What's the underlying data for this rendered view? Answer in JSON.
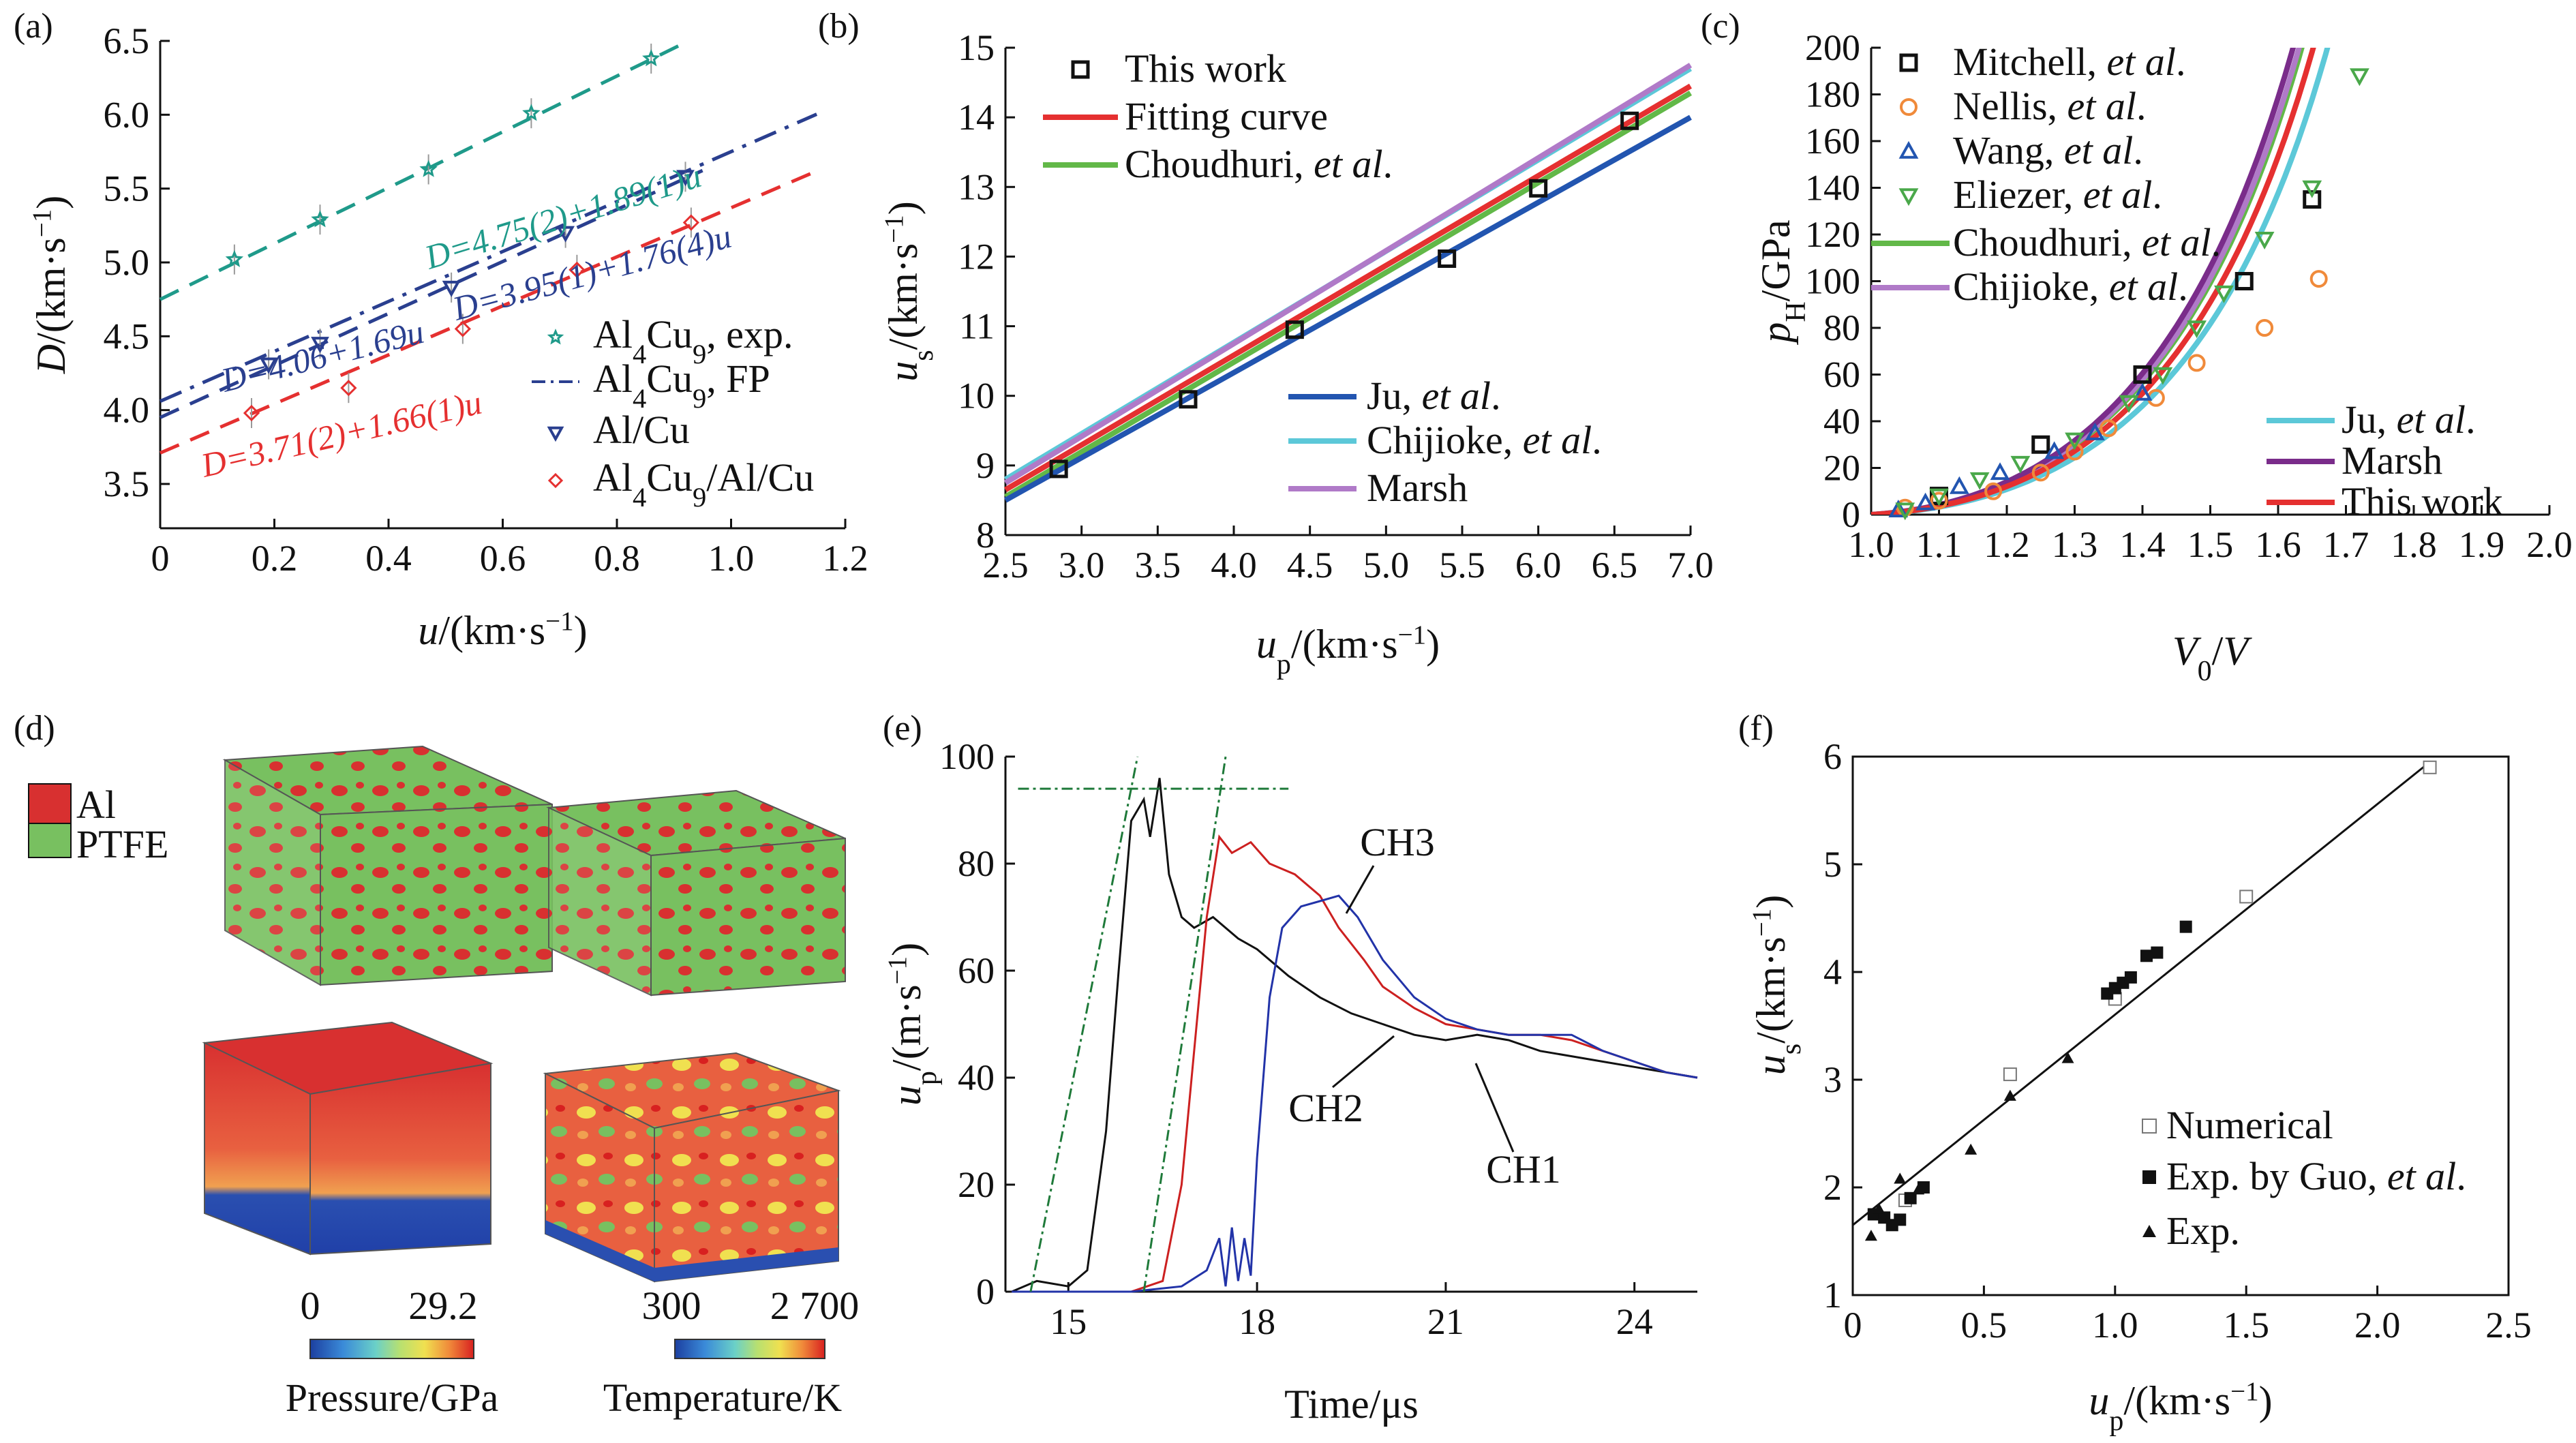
{
  "colors": {
    "teal": "#1f9a8a",
    "navy": "#2a3f8f",
    "red": "#e53030",
    "black": "#111111",
    "green": "#62b848",
    "lightblue": "#5cc8d8",
    "purple": "#b07ac8",
    "darkblue": "#2255b0",
    "orange": "#f08a3a",
    "darkpurple": "#7a2c8a",
    "al": "#d83030",
    "ptfe": "#78c060",
    "cyan": "#3ab8d8"
  },
  "chart_data": [
    {
      "id": "a",
      "type": "scatter",
      "panel_label": "(a)",
      "xlabel": "u/(km·s⁻¹)",
      "ylabel": "D/(km·s⁻¹)",
      "xlim": [
        0,
        1.2
      ],
      "ylim": [
        3.2,
        6.5
      ],
      "xticks": [
        0,
        0.2,
        0.4,
        0.6,
        0.8,
        1.0,
        1.2
      ],
      "yticks": [
        3.5,
        4.0,
        4.5,
        5.0,
        5.5,
        6.0,
        6.5
      ],
      "series": [
        {
          "name": "Al4Cu9, exp.",
          "marker": "star",
          "color": "#1f9a8a",
          "points": [
            [
              0.13,
              5.02
            ],
            [
              0.28,
              5.29
            ],
            [
              0.47,
              5.63
            ],
            [
              0.65,
              6.01
            ],
            [
              0.86,
              6.38
            ]
          ],
          "fit": {
            "x": [
              0,
              0.92
            ],
            "a": 4.75,
            "b": 1.89
          }
        },
        {
          "name": "Al4Cu9, FP",
          "marker": "none",
          "color": "#2a3f8f",
          "dash": "dashdot",
          "fit": {
            "x": [
              0,
              1.15
            ],
            "a": 4.06,
            "b": 1.69
          }
        },
        {
          "name": "Al/Cu",
          "marker": "tri-down",
          "color": "#2a3f8f",
          "points": [
            [
              0.19,
              4.31
            ],
            [
              0.28,
              4.45
            ],
            [
              0.51,
              4.83
            ],
            [
              0.71,
              5.2
            ],
            [
              0.92,
              5.58
            ]
          ],
          "fit": {
            "x": [
              0,
              0.95
            ],
            "a": 3.95,
            "b": 1.76
          }
        },
        {
          "name": "Al4Cu9/Al/Cu",
          "marker": "diamond",
          "color": "#e53030",
          "points": [
            [
              0.16,
              3.98
            ],
            [
              0.33,
              4.15
            ],
            [
              0.53,
              4.55
            ],
            [
              0.73,
              4.95
            ],
            [
              0.93,
              5.27
            ]
          ],
          "fit": {
            "x": [
              0,
              1.15
            ],
            "a": 3.71,
            "b": 1.66
          }
        }
      ],
      "annotations": [
        "D=4.75(2)+1.89(1)u",
        "D=4.06+1.69u",
        "D=3.95(1)+1.76(4)u",
        "D=3.71(2)+1.66(1)u"
      ],
      "legend": [
        "Al4Cu9, exp.",
        "Al4Cu9, FP",
        "Al/Cu",
        "Al4Cu9/Al/Cu"
      ]
    },
    {
      "id": "b",
      "type": "line",
      "panel_label": "(b)",
      "xlabel": "up/(km·s⁻¹)",
      "ylabel": "us/(km·s⁻¹)",
      "xlim": [
        2.5,
        7.0
      ],
      "ylim": [
        8,
        15
      ],
      "xticks": [
        2.5,
        3.0,
        3.5,
        4.0,
        4.5,
        5.0,
        5.5,
        6.0,
        6.5,
        7.0
      ],
      "yticks": [
        8,
        9,
        10,
        11,
        12,
        13,
        14,
        15
      ],
      "points": [
        [
          2.85,
          8.95
        ],
        [
          3.7,
          9.95
        ],
        [
          4.4,
          10.95
        ],
        [
          5.4,
          11.97
        ],
        [
          6.0,
          12.98
        ],
        [
          6.6,
          13.95
        ]
      ],
      "series": [
        {
          "name": "Fitting curve",
          "color": "#e53030",
          "line": [
            [
              2.5,
              8.65
            ],
            [
              7.0,
              14.45
            ]
          ]
        },
        {
          "name": "Choudhuri, et al.",
          "color": "#62b848",
          "line": [
            [
              2.5,
              8.55
            ],
            [
              7.0,
              14.35
            ]
          ]
        },
        {
          "name": "Ju, et al.",
          "color": "#2255b0",
          "line": [
            [
              2.5,
              8.5
            ],
            [
              7.0,
              14.0
            ]
          ]
        },
        {
          "name": "Chijioke, et al.",
          "color": "#5cc8d8",
          "line": [
            [
              2.5,
              8.8
            ],
            [
              7.0,
              14.7
            ]
          ]
        },
        {
          "name": "Marsh",
          "color": "#b07ac8",
          "line": [
            [
              2.5,
              8.75
            ],
            [
              7.0,
              14.75
            ]
          ]
        }
      ],
      "legend_top": [
        "This work",
        "Fitting curve",
        "Choudhuri, et al."
      ],
      "legend_bottom": [
        "Ju, et al.",
        "Chijioke, et al.",
        "Marsh"
      ]
    },
    {
      "id": "c",
      "type": "scatter",
      "panel_label": "(c)",
      "xlabel": "V0/V",
      "ylabel": "pH/GPa",
      "xlim": [
        1.0,
        2.0
      ],
      "ylim": [
        0,
        200
      ],
      "xticks": [
        1.0,
        1.1,
        1.2,
        1.3,
        1.4,
        1.5,
        1.6,
        1.7,
        1.8,
        1.9,
        2.0
      ],
      "yticks": [
        0,
        20,
        40,
        60,
        80,
        100,
        120,
        140,
        160,
        180,
        200
      ],
      "markers": [
        {
          "name": "Mitchell, et al.",
          "marker": "square",
          "color": "#111111",
          "points": [
            [
              1.1,
              8
            ],
            [
              1.25,
              30
            ],
            [
              1.4,
              60
            ],
            [
              1.55,
              100
            ],
            [
              1.65,
              135
            ]
          ]
        },
        {
          "name": "Nellis, et al.",
          "marker": "circle",
          "color": "#f08a3a",
          "points": [
            [
              1.05,
              3
            ],
            [
              1.1,
              6
            ],
            [
              1.18,
              10
            ],
            [
              1.25,
              18
            ],
            [
              1.3,
              27
            ],
            [
              1.35,
              37
            ],
            [
              1.42,
              50
            ],
            [
              1.48,
              65
            ],
            [
              1.58,
              80
            ],
            [
              1.66,
              101
            ]
          ]
        },
        {
          "name": "Wang, et al.",
          "marker": "tri-up",
          "color": "#2255b0",
          "points": [
            [
              1.04,
              2
            ],
            [
              1.08,
              5
            ],
            [
              1.13,
              12
            ],
            [
              1.19,
              18
            ],
            [
              1.27,
              27
            ],
            [
              1.33,
              35
            ],
            [
              1.4,
              52
            ]
          ]
        },
        {
          "name": "Eliezer, et al.",
          "marker": "tri-down",
          "color": "#4aa84a",
          "points": [
            [
              1.05,
              2
            ],
            [
              1.1,
              8
            ],
            [
              1.16,
              15
            ],
            [
              1.22,
              22
            ],
            [
              1.3,
              32
            ],
            [
              1.38,
              48
            ],
            [
              1.43,
              60
            ],
            [
              1.48,
              80
            ],
            [
              1.52,
              95
            ],
            [
              1.58,
              118
            ],
            [
              1.65,
              140
            ],
            [
              1.72,
              188
            ]
          ]
        }
      ],
      "curves": [
        {
          "name": "Choudhuri, et al.",
          "color": "#62b848",
          "k": 192
        },
        {
          "name": "Chijioke, et al.",
          "color": "#b07ac8",
          "k": 196
        },
        {
          "name": "Ju, et al.",
          "color": "#5cc8d8",
          "k": 158
        },
        {
          "name": "Marsh",
          "color": "#7a2c8a",
          "k": 205
        },
        {
          "name": "This work",
          "color": "#e53030",
          "k": 176
        }
      ],
      "legend_top": [
        "Mitchell, et al.",
        "Nellis, et al.",
        "Wang, et al.",
        "Eliezer, et al.",
        "Choudhuri, et al.",
        "Chijioke, et al."
      ],
      "legend_bottom": [
        "Ju, et al.",
        "Marsh",
        "This work"
      ]
    },
    {
      "id": "e",
      "type": "line",
      "panel_label": "(e)",
      "xlabel": "Time/μs",
      "ylabel": "up/(m·s⁻¹)",
      "xlim": [
        14,
        25
      ],
      "ylim": [
        0,
        100
      ],
      "xticks": [
        15,
        18,
        21,
        24
      ],
      "yticks": [
        0,
        20,
        40,
        60,
        80,
        100
      ],
      "series": [
        {
          "name": "CH1",
          "color": "#111111",
          "points": [
            [
              14.1,
              0
            ],
            [
              14.5,
              2
            ],
            [
              15.0,
              1
            ],
            [
              15.3,
              4
            ],
            [
              15.6,
              30
            ],
            [
              15.8,
              60
            ],
            [
              16.0,
              88
            ],
            [
              16.2,
              92
            ],
            [
              16.3,
              85
            ],
            [
              16.45,
              96
            ],
            [
              16.6,
              78
            ],
            [
              16.8,
              70
            ],
            [
              17.0,
              68
            ],
            [
              17.3,
              70
            ],
            [
              17.7,
              66
            ],
            [
              18.0,
              64
            ],
            [
              18.5,
              59
            ],
            [
              19.0,
              55
            ],
            [
              19.5,
              52
            ],
            [
              20.0,
              50
            ],
            [
              20.5,
              48
            ],
            [
              21.0,
              47
            ],
            [
              21.5,
              48
            ],
            [
              22.0,
              47
            ],
            [
              22.5,
              45
            ],
            [
              23.0,
              44
            ],
            [
              23.5,
              43
            ],
            [
              24.0,
              42
            ],
            [
              24.5,
              41
            ],
            [
              25.0,
              40
            ]
          ]
        },
        {
          "name": "CH2",
          "color": "#cc2020",
          "points": [
            [
              14.1,
              0
            ],
            [
              15.0,
              0
            ],
            [
              16.0,
              0
            ],
            [
              16.5,
              2
            ],
            [
              16.8,
              20
            ],
            [
              17.0,
              45
            ],
            [
              17.2,
              70
            ],
            [
              17.4,
              85
            ],
            [
              17.6,
              82
            ],
            [
              17.9,
              84
            ],
            [
              18.2,
              80
            ],
            [
              18.6,
              78
            ],
            [
              19.0,
              74
            ],
            [
              19.3,
              68
            ],
            [
              19.7,
              62
            ],
            [
              20.0,
              57
            ],
            [
              20.5,
              53
            ],
            [
              21.0,
              50
            ],
            [
              21.5,
              49
            ],
            [
              22.0,
              48
            ],
            [
              22.5,
              48
            ],
            [
              23.0,
              47
            ],
            [
              23.5,
              45
            ],
            [
              24.0,
              43
            ],
            [
              24.5,
              41
            ],
            [
              25.0,
              40
            ]
          ]
        },
        {
          "name": "CH3",
          "color": "#2233a8",
          "points": [
            [
              14.1,
              0
            ],
            [
              15.0,
              0
            ],
            [
              16.0,
              0
            ],
            [
              16.8,
              1
            ],
            [
              17.2,
              4
            ],
            [
              17.4,
              10
            ],
            [
              17.5,
              1
            ],
            [
              17.6,
              12
            ],
            [
              17.7,
              2
            ],
            [
              17.8,
              10
            ],
            [
              17.9,
              3
            ],
            [
              18.0,
              25
            ],
            [
              18.2,
              55
            ],
            [
              18.4,
              68
            ],
            [
              18.7,
              72
            ],
            [
              19.0,
              73
            ],
            [
              19.3,
              74
            ],
            [
              19.6,
              70
            ],
            [
              20.0,
              62
            ],
            [
              20.5,
              55
            ],
            [
              21.0,
              51
            ],
            [
              21.5,
              49
            ],
            [
              22.0,
              48
            ],
            [
              22.5,
              48
            ],
            [
              23.0,
              48
            ],
            [
              23.5,
              45
            ],
            [
              24.0,
              43
            ],
            [
              24.5,
              41
            ],
            [
              25.0,
              40
            ]
          ]
        }
      ],
      "guide_color": "#1f7a3a",
      "labels": [
        "CH3",
        "CH2",
        "CH1"
      ]
    },
    {
      "id": "f",
      "type": "scatter",
      "panel_label": "(f)",
      "xlabel": "up/(km·s⁻¹)",
      "ylabel": "us/(km·s⁻¹)",
      "xlim": [
        0,
        2.5
      ],
      "ylim": [
        1,
        6
      ],
      "xticks": [
        0,
        0.5,
        1.0,
        1.5,
        2.0,
        2.5
      ],
      "yticks": [
        1,
        2,
        3,
        4,
        5,
        6
      ],
      "series": [
        {
          "name": "Numerical",
          "marker": "open-square",
          "points": [
            [
              0.2,
              1.88
            ],
            [
              0.6,
              3.05
            ],
            [
              1.0,
              3.75
            ],
            [
              1.5,
              4.7
            ],
            [
              2.2,
              5.9
            ]
          ]
        },
        {
          "name": "Exp. by Guo, et al.",
          "marker": "filled-square",
          "points": [
            [
              0.08,
              1.75
            ],
            [
              0.12,
              1.72
            ],
            [
              0.15,
              1.65
            ],
            [
              0.18,
              1.7
            ],
            [
              0.22,
              1.9
            ],
            [
              0.27,
              2.0
            ],
            [
              0.97,
              3.8
            ],
            [
              1.0,
              3.85
            ],
            [
              1.03,
              3.9
            ],
            [
              1.06,
              3.95
            ],
            [
              1.12,
              4.15
            ],
            [
              1.16,
              4.18
            ],
            [
              1.27,
              4.42
            ]
          ]
        },
        {
          "name": "Exp.",
          "marker": "filled-triangle",
          "points": [
            [
              0.07,
              1.55
            ],
            [
              0.1,
              1.8
            ],
            [
              0.18,
              2.08
            ],
            [
              0.25,
              1.98
            ],
            [
              0.45,
              2.35
            ],
            [
              0.6,
              2.85
            ],
            [
              0.82,
              3.2
            ]
          ]
        }
      ],
      "fit": [
        [
          0,
          1.65
        ],
        [
          2.2,
          5.95
        ]
      ],
      "legend": [
        "Numerical",
        "Exp. by Guo, et al.",
        "Exp."
      ]
    }
  ],
  "panel_d": {
    "label": "(d)",
    "legend": [
      "Al",
      "PTFE"
    ],
    "colorbar_pressure": {
      "min": "0",
      "max": "29.2",
      "title": "Pressure/GPa"
    },
    "colorbar_temperature": {
      "min": "300",
      "max": "2 700",
      "title": "Temperature/K"
    }
  }
}
